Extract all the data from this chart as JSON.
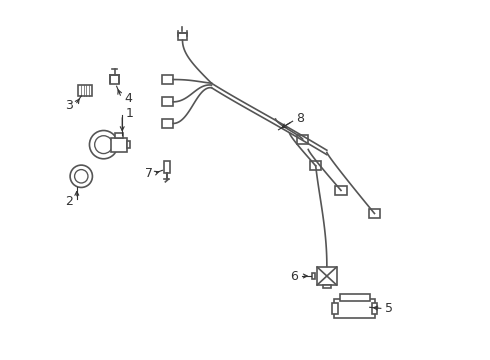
{
  "background_color": "#ffffff",
  "line_color": "#555555",
  "line_width": 1.2,
  "text_color": "#333333",
  "font_size": 9
}
